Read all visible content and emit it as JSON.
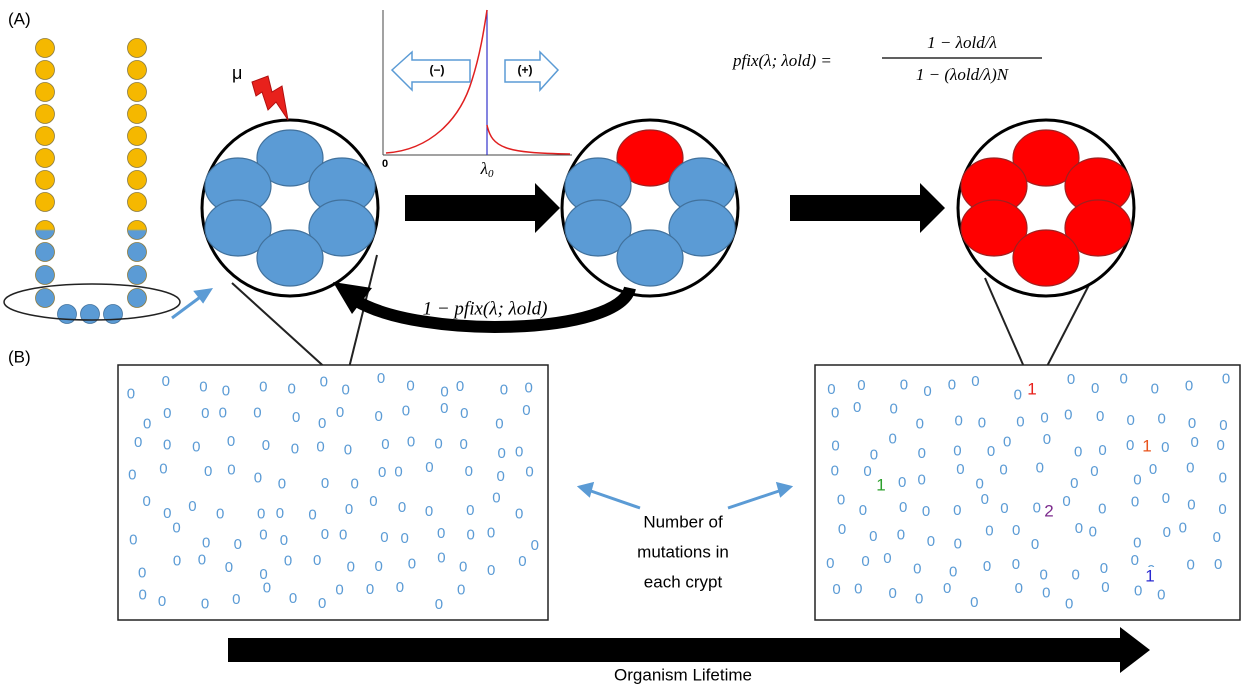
{
  "panel_labels": [
    "(A)",
    "(B)"
  ],
  "mutation_symbol": "μ",
  "selection_plot": {
    "left_label": "(−)",
    "right_label": "(+)",
    "x_origin": "0",
    "x_marker": {
      "symbol": "λ",
      "subscript": "0"
    }
  },
  "fixation_formula": {
    "lhs": "pfix(λ; λold) =",
    "numerator": "1 − λold/λ",
    "denominator": "1 − (λold/λ)N"
  },
  "loss_label": "1 − pfix(λ; λold)",
  "crypts": {
    "before": [
      0,
      0,
      0,
      0,
      0,
      0,
      0,
      0,
      0,
      0,
      0,
      0,
      0,
      0,
      0,
      0,
      0,
      0,
      0,
      0,
      0,
      0,
      0,
      0,
      0,
      0,
      0,
      0,
      0,
      0,
      0,
      0,
      0,
      0,
      0,
      0,
      0,
      0,
      0,
      0,
      0,
      0,
      0,
      0,
      0,
      0,
      0,
      0,
      0,
      0,
      0,
      0,
      0,
      0,
      0,
      0,
      0,
      0,
      0,
      0,
      0,
      0,
      0,
      0,
      0,
      0,
      0,
      0,
      0,
      0,
      0,
      0,
      0,
      0,
      0,
      0,
      0,
      0,
      0,
      0,
      0,
      0,
      0,
      0,
      0,
      0,
      0,
      0,
      0,
      0,
      0,
      0,
      0,
      0,
      0,
      0,
      0,
      0,
      0,
      0,
      0,
      0,
      0,
      0,
      0,
      0,
      0,
      0,
      0,
      0
    ],
    "after": [
      0,
      0,
      0,
      0,
      0,
      0,
      0,
      0,
      0,
      0,
      0,
      0,
      0,
      0,
      0,
      0,
      0,
      0,
      0,
      0,
      0,
      0,
      0,
      0,
      0,
      0,
      0,
      0,
      0,
      0,
      0,
      0,
      0,
      0,
      0,
      0,
      0,
      0,
      0,
      0,
      0,
      0,
      0,
      0,
      0,
      0,
      0,
      0,
      0,
      0,
      0,
      0,
      0,
      0,
      0,
      0,
      0,
      0,
      0,
      0,
      0,
      0,
      0,
      0,
      0,
      0,
      0,
      0,
      0,
      0,
      0,
      0,
      0,
      0,
      0,
      0,
      0,
      0,
      0,
      0,
      0,
      0,
      0,
      0,
      0,
      0,
      0,
      0,
      0,
      0,
      0,
      0,
      0,
      0,
      0,
      0,
      0,
      0,
      0,
      0,
      0,
      0,
      0,
      0,
      0,
      0,
      0,
      0,
      0,
      0
    ],
    "after_marked": [
      {
        "count": 1,
        "color": "#e8211c"
      },
      {
        "count": 1,
        "color": "#e8541c"
      },
      {
        "count": 1,
        "color": "#2ca02c"
      },
      {
        "count": 2,
        "color": "#7b2a8c"
      },
      {
        "count": 1,
        "color": "#2a2ad0"
      }
    ]
  },
  "callout": [
    "Number of",
    "mutations in",
    "each crypt"
  ],
  "timeline_label": "Organism Lifetime"
}
